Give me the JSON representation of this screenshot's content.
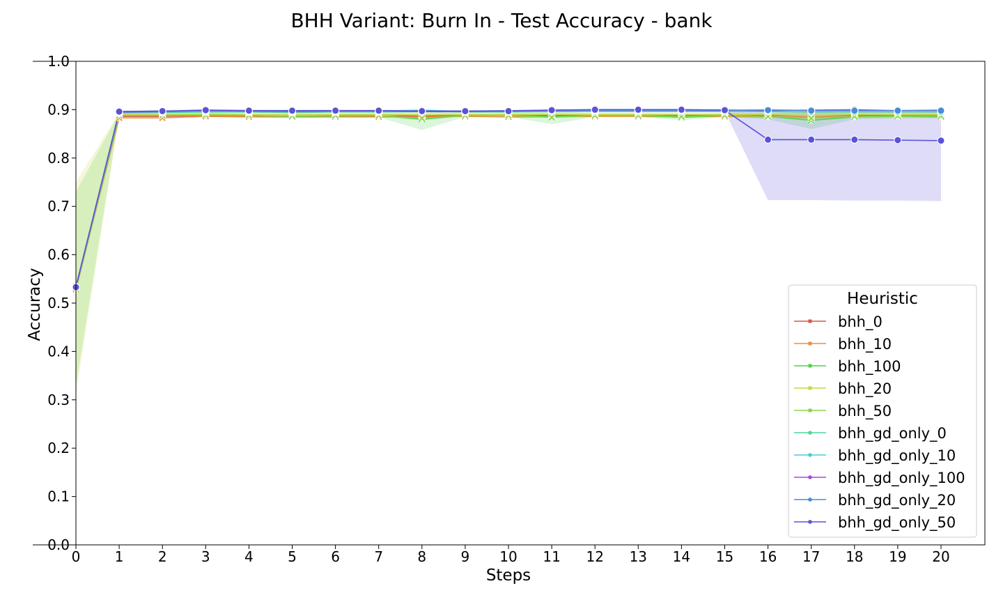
{
  "chart_data": {
    "type": "line",
    "title": "BHH Variant: Burn In - Test Accuracy - bank",
    "xlabel": "Steps",
    "ylabel": "Accuracy",
    "xlim": [
      0,
      21
    ],
    "ylim": [
      0.0,
      1.0
    ],
    "x": [
      0,
      1,
      2,
      3,
      4,
      5,
      6,
      7,
      8,
      9,
      10,
      11,
      12,
      13,
      14,
      15,
      16,
      17,
      18,
      19,
      20
    ],
    "x_ticks": [
      "0",
      "1",
      "2",
      "3",
      "4",
      "5",
      "6",
      "7",
      "8",
      "9",
      "10",
      "11",
      "12",
      "13",
      "14",
      "15",
      "16",
      "17",
      "18",
      "19",
      "20"
    ],
    "y_ticks": [
      "0.0",
      "0.1",
      "0.2",
      "0.3",
      "0.4",
      "0.5",
      "0.6",
      "0.7",
      "0.8",
      "0.9",
      "1.0"
    ],
    "grid": false,
    "legend": {
      "title": "Heuristic",
      "placement": "lower-right"
    },
    "series": [
      {
        "name": "bhh_0",
        "color": "#d9564a",
        "marker": "x",
        "values": [
          0.533,
          0.886,
          0.886,
          0.888,
          0.887,
          0.887,
          0.887,
          0.887,
          0.887,
          0.888,
          0.888,
          0.888,
          0.888,
          0.888,
          0.888,
          0.888,
          0.888,
          0.888,
          0.888,
          0.888,
          0.888
        ]
      },
      {
        "name": "bhh_10",
        "color": "#e8923a",
        "marker": "x",
        "values": [
          0.528,
          0.883,
          0.883,
          0.886,
          0.885,
          0.885,
          0.885,
          0.885,
          0.885,
          0.886,
          0.885,
          0.885,
          0.886,
          0.886,
          0.885,
          0.886,
          0.885,
          0.885,
          0.885,
          0.886,
          0.885
        ]
      },
      {
        "name": "bhh_100",
        "color": "#4cd44a",
        "marker": "x",
        "values": [
          0.531,
          0.889,
          0.889,
          0.89,
          0.888,
          0.886,
          0.887,
          0.888,
          0.88,
          0.888,
          0.888,
          0.886,
          0.888,
          0.888,
          0.884,
          0.888,
          0.886,
          0.878,
          0.885,
          0.886,
          0.886
        ],
        "lower": [
          0.33,
          0.885,
          0.885,
          0.886,
          0.885,
          0.883,
          0.884,
          0.884,
          0.858,
          0.885,
          0.885,
          0.87,
          0.885,
          0.885,
          0.878,
          0.885,
          0.88,
          0.86,
          0.88,
          0.882,
          0.882
        ],
        "upper": [
          0.73,
          0.893,
          0.893,
          0.894,
          0.892,
          0.89,
          0.891,
          0.892,
          0.896,
          0.892,
          0.892,
          0.897,
          0.892,
          0.892,
          0.891,
          0.892,
          0.892,
          0.895,
          0.892,
          0.891,
          0.891
        ]
      },
      {
        "name": "bhh_20",
        "color": "#c8d646",
        "marker": "x",
        "values": [
          0.535,
          0.89,
          0.89,
          0.891,
          0.89,
          0.89,
          0.89,
          0.89,
          0.889,
          0.89,
          0.89,
          0.89,
          0.89,
          0.89,
          0.89,
          0.89,
          0.89,
          0.888,
          0.89,
          0.89,
          0.89
        ],
        "lower": [
          0.31,
          0.886,
          0.886,
          0.887,
          0.886,
          0.886,
          0.886,
          0.886,
          0.884,
          0.886,
          0.886,
          0.886,
          0.886,
          0.886,
          0.886,
          0.886,
          0.886,
          0.882,
          0.886,
          0.886,
          0.886
        ],
        "upper": [
          0.75,
          0.894,
          0.894,
          0.895,
          0.894,
          0.894,
          0.894,
          0.894,
          0.894,
          0.894,
          0.894,
          0.894,
          0.894,
          0.894,
          0.894,
          0.894,
          0.894,
          0.894,
          0.894,
          0.894,
          0.894
        ]
      },
      {
        "name": "bhh_50",
        "color": "#8dd44a",
        "marker": "x",
        "values": [
          0.53,
          0.888,
          0.888,
          0.889,
          0.888,
          0.887,
          0.888,
          0.888,
          0.882,
          0.888,
          0.888,
          0.884,
          0.888,
          0.888,
          0.886,
          0.888,
          0.886,
          0.882,
          0.886,
          0.887,
          0.887
        ]
      },
      {
        "name": "bhh_gd_only_0",
        "color": "#4bd69a",
        "marker": "o",
        "values": [
          0.533,
          0.893,
          0.894,
          0.895,
          0.895,
          0.894,
          0.895,
          0.895,
          0.896,
          0.895,
          0.895,
          0.896,
          0.896,
          0.896,
          0.896,
          0.896,
          0.896,
          0.895,
          0.895,
          0.895,
          0.895
        ]
      },
      {
        "name": "bhh_gd_only_10",
        "color": "#4cc9d9",
        "marker": "o",
        "values": [
          0.533,
          0.894,
          0.895,
          0.897,
          0.896,
          0.896,
          0.897,
          0.897,
          0.899,
          0.896,
          0.897,
          0.898,
          0.898,
          0.898,
          0.898,
          0.898,
          0.9,
          0.898,
          0.898,
          0.898,
          0.898
        ]
      },
      {
        "name": "bhh_gd_only_100",
        "color": "#a64ad9",
        "marker": "o",
        "values": [
          0.533,
          0.895,
          0.896,
          0.898,
          0.897,
          0.896,
          0.897,
          0.897,
          0.896,
          0.896,
          0.897,
          0.898,
          0.899,
          0.899,
          0.899,
          0.899,
          0.898,
          0.899,
          0.9,
          0.898,
          0.899
        ]
      },
      {
        "name": "bhh_gd_only_20",
        "color": "#4a8ad9",
        "marker": "o",
        "values": [
          0.533,
          0.896,
          0.897,
          0.898,
          0.898,
          0.897,
          0.898,
          0.898,
          0.897,
          0.897,
          0.898,
          0.899,
          0.899,
          0.899,
          0.899,
          0.899,
          0.899,
          0.898,
          0.898,
          0.898,
          0.898
        ]
      },
      {
        "name": "bhh_gd_only_50",
        "color": "#5a52d9",
        "marker": "o",
        "values": [
          0.533,
          0.896,
          0.897,
          0.899,
          0.898,
          0.898,
          0.898,
          0.898,
          0.897,
          0.897,
          0.897,
          0.899,
          0.9,
          0.9,
          0.9,
          0.899,
          0.838,
          0.838,
          0.838,
          0.837,
          0.836
        ],
        "lower": [
          0.533,
          0.894,
          0.895,
          0.897,
          0.896,
          0.896,
          0.896,
          0.896,
          0.895,
          0.895,
          0.895,
          0.897,
          0.898,
          0.898,
          0.898,
          0.897,
          0.713,
          0.713,
          0.712,
          0.712,
          0.711
        ],
        "upper": [
          0.533,
          0.898,
          0.899,
          0.901,
          0.9,
          0.9,
          0.9,
          0.9,
          0.899,
          0.899,
          0.899,
          0.901,
          0.902,
          0.902,
          0.902,
          0.901,
          0.9,
          0.9,
          0.9,
          0.9,
          0.9
        ]
      }
    ]
  }
}
